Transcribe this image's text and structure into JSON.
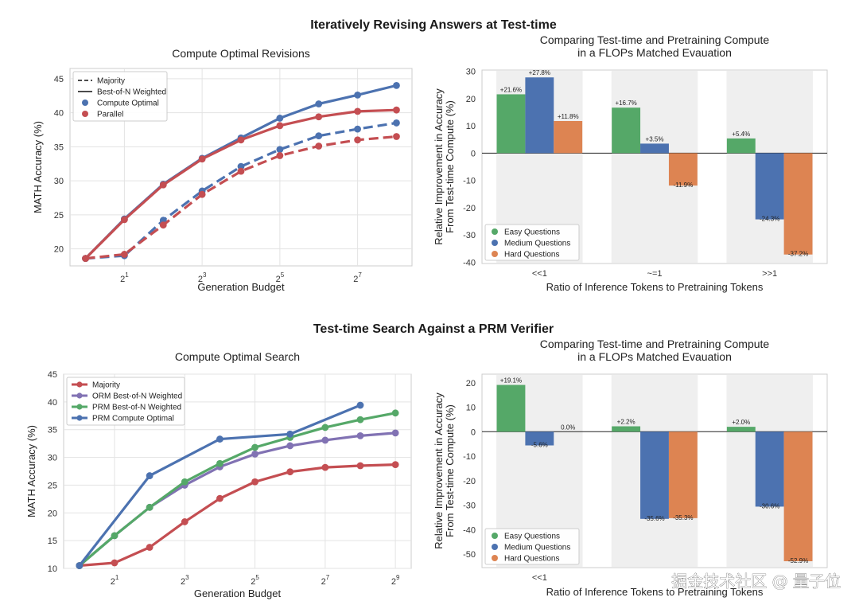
{
  "suptitles": {
    "top": "Iteratively Revising Answers at Test-time",
    "bottom": "Test-time Search Against a PRM Verifier"
  },
  "watermark": "掘金技术社区 @ 量子位",
  "colors": {
    "blue": "#4c72b0",
    "red": "#c44e52",
    "green": "#55a868",
    "purple": "#8172b3",
    "orange": "#dd8452"
  },
  "chart_data": [
    {
      "id": "revisions",
      "type": "line",
      "title": "Compute Optimal Revisions",
      "xlabel": "Generation Budget",
      "ylabel": "MATH Accuracy (%)",
      "x_scale": "log2",
      "x": [
        1,
        2,
        4,
        8,
        16,
        32,
        64,
        128,
        256
      ],
      "xticks": [
        {
          "base": "2",
          "exp": "1"
        },
        {
          "base": "2",
          "exp": "3"
        },
        {
          "base": "2",
          "exp": "5"
        },
        {
          "base": "2",
          "exp": "7"
        }
      ],
      "xtick_values": [
        2,
        8,
        32,
        128
      ],
      "ylim": [
        17.5,
        46.5
      ],
      "yticks": [
        20,
        25,
        30,
        35,
        40,
        45
      ],
      "grid": true,
      "legend": {
        "position": "top-left",
        "entries": [
          {
            "label": "Majority",
            "kind": "dashed"
          },
          {
            "label": "Best-of-N Weighted",
            "kind": "solid"
          },
          {
            "label": "Compute Optimal",
            "kind": "dot",
            "color": "#4c72b0"
          },
          {
            "label": "Parallel",
            "kind": "dot",
            "color": "#c44e52"
          }
        ]
      },
      "series": [
        {
          "name": "Compute Optimal",
          "style": "solid",
          "color": "#4c72b0",
          "values": [
            18.6,
            24.4,
            29.5,
            33.3,
            36.3,
            39.2,
            41.3,
            42.6,
            44.0
          ]
        },
        {
          "name": "Parallel",
          "style": "solid",
          "color": "#c44e52",
          "values": [
            18.6,
            24.3,
            29.4,
            33.2,
            36.0,
            38.1,
            39.4,
            40.2,
            40.4
          ]
        },
        {
          "name": "Compute Optimal",
          "style": "dashed",
          "color": "#4c72b0",
          "values": [
            18.6,
            19.0,
            24.2,
            28.5,
            32.1,
            34.6,
            36.6,
            37.6,
            38.5
          ]
        },
        {
          "name": "Parallel",
          "style": "dashed",
          "color": "#c44e52",
          "values": [
            18.6,
            19.2,
            23.5,
            28.0,
            31.4,
            33.7,
            35.1,
            36.0,
            36.5
          ]
        }
      ]
    },
    {
      "id": "flops-revisions",
      "type": "bar",
      "title": [
        "Comparing Test-time and Pretraining Compute",
        "in a FLOPs Matched Evauation"
      ],
      "xlabel": "Ratio of Inference Tokens to Pretraining Tokens",
      "ylabel": [
        "Relative Improvement in Accuracy",
        "From Test-time Compute (%)"
      ],
      "categories": [
        "<<1",
        "~=1",
        ">>1"
      ],
      "ylim": [
        -40.5,
        30.5
      ],
      "yticks": [
        -40,
        -30,
        -20,
        -10,
        0,
        10,
        20,
        30
      ],
      "legend": {
        "position": "bottom-left"
      },
      "series": [
        {
          "name": "Easy Questions",
          "color": "#55a868",
          "values": [
            21.6,
            16.7,
            5.4
          ],
          "labels": [
            "+21.6%",
            "+16.7%",
            "+5.4%"
          ]
        },
        {
          "name": "Medium Questions",
          "color": "#4c72b0",
          "values": [
            27.8,
            3.5,
            -24.3
          ],
          "labels": [
            "+27.8%",
            "+3.5%",
            "-24.3%"
          ]
        },
        {
          "name": "Hard Questions",
          "color": "#dd8452",
          "values": [
            11.8,
            -11.9,
            -37.2
          ],
          "labels": [
            "+11.8%",
            "-11.9%",
            "-37.2%"
          ]
        }
      ]
    },
    {
      "id": "search",
      "type": "line",
      "title": "Compute Optimal Search",
      "xlabel": "Generation Budget",
      "ylabel": "MATH Accuracy (%)",
      "x_scale": "log2",
      "x": [
        1,
        2,
        4,
        8,
        16,
        32,
        64,
        128,
        256,
        512
      ],
      "xticks": [
        {
          "base": "2",
          "exp": "1"
        },
        {
          "base": "2",
          "exp": "3"
        },
        {
          "base": "2",
          "exp": "5"
        },
        {
          "base": "2",
          "exp": "7"
        },
        {
          "base": "2",
          "exp": "9"
        }
      ],
      "xtick_values": [
        2,
        8,
        32,
        128,
        512
      ],
      "ylim": [
        10,
        45
      ],
      "yticks": [
        10,
        15,
        20,
        25,
        30,
        35,
        40,
        45
      ],
      "grid": true,
      "legend": {
        "position": "top-left"
      },
      "series": [
        {
          "name": "Majority",
          "color": "#c44e52",
          "x": [
            1,
            2,
            4,
            8,
            16,
            32,
            64,
            128,
            256,
            512
          ],
          "values": [
            10.5,
            11.0,
            13.8,
            18.4,
            22.6,
            25.6,
            27.4,
            28.2,
            28.5,
            28.7
          ]
        },
        {
          "name": "ORM Best-of-N Weighted",
          "color": "#8172b3",
          "x": [
            1,
            2,
            4,
            8,
            16,
            32,
            64,
            128,
            256,
            512
          ],
          "values": [
            10.5,
            15.9,
            21.0,
            25.0,
            28.3,
            30.6,
            32.1,
            33.1,
            33.9,
            34.4
          ]
        },
        {
          "name": "PRM Best-of-N Weighted",
          "color": "#55a868",
          "x": [
            1,
            2,
            4,
            8,
            16,
            32,
            64,
            128,
            256,
            512
          ],
          "values": [
            10.5,
            15.9,
            21.0,
            25.6,
            28.9,
            31.8,
            33.6,
            35.4,
            36.8,
            38.0
          ]
        },
        {
          "name": "PRM Compute Optimal",
          "color": "#4c72b0",
          "x": [
            1,
            4,
            16,
            64,
            256
          ],
          "values": [
            10.5,
            26.7,
            33.3,
            34.2,
            39.4
          ]
        }
      ]
    },
    {
      "id": "flops-search",
      "type": "bar",
      "title": [
        "Comparing Test-time and Pretraining Compute",
        "in a FLOPs Matched Evauation"
      ],
      "xlabel": "Ratio of Inference Tokens to Pretraining Tokens",
      "ylabel": [
        "Relative Improvement in Accuracy",
        "From Test-time Compute (%)"
      ],
      "categories": [
        "<<1",
        "",
        ""
      ],
      "ylim": [
        -55.5,
        23.5
      ],
      "yticks": [
        -50,
        -40,
        -30,
        -20,
        -10,
        0,
        10,
        20
      ],
      "legend": {
        "position": "bottom-left"
      },
      "series": [
        {
          "name": "Easy Questions",
          "color": "#55a868",
          "values": [
            19.1,
            2.2,
            2.0
          ],
          "labels": [
            "+19.1%",
            "+2.2%",
            "+2.0%"
          ]
        },
        {
          "name": "Medium Questions",
          "color": "#4c72b0",
          "values": [
            -5.6,
            -35.6,
            -30.6
          ],
          "labels": [
            "-5.6%",
            "-35.6%",
            "-30.6%"
          ]
        },
        {
          "name": "Hard Questions",
          "color": "#dd8452",
          "values": [
            0.0,
            -35.3,
            -52.9
          ],
          "labels": [
            "0.0%",
            "-35.3%",
            "-52.9%"
          ]
        }
      ]
    }
  ]
}
